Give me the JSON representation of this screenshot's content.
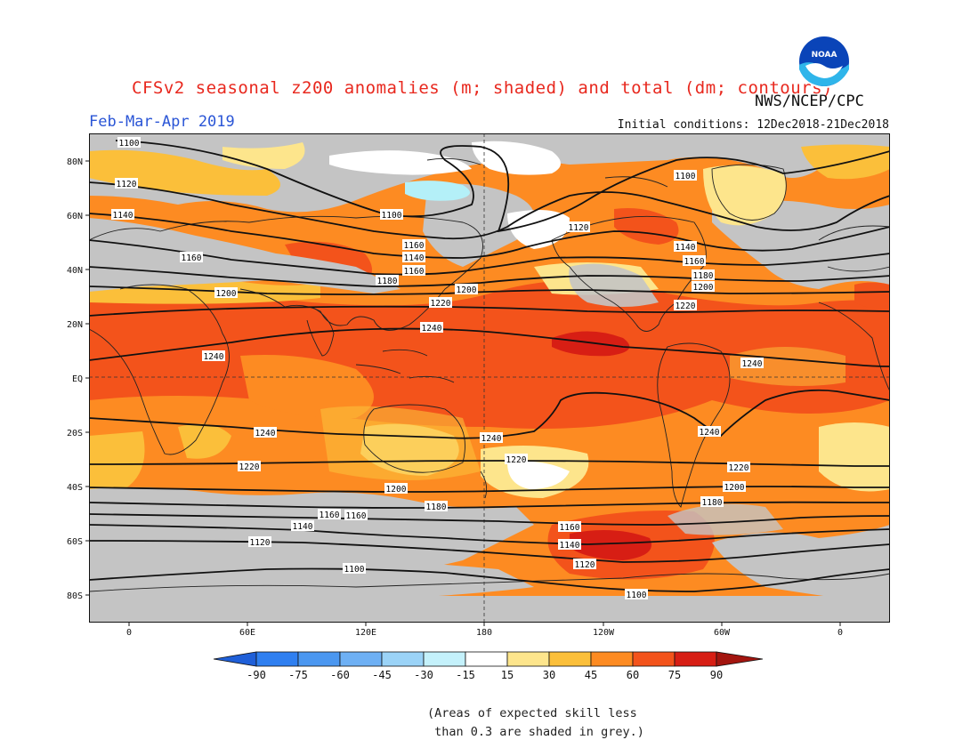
{
  "header": {
    "title": "CFSv2 seasonal z200 anomalies (m; shaded) and total (dm; contours)",
    "agency": "NWS/NCEP/CPC",
    "season": "Feb-Mar-Apr 2019",
    "initial_conditions": "Initial conditions: 12Dec2018-21Dec2018",
    "logo_icon": "noaa-logo-icon",
    "logo_text": "NOAA"
  },
  "map": {
    "lat_labels": [
      "80N",
      "60N",
      "40N",
      "20N",
      "EQ",
      "20S",
      "40S",
      "60S",
      "80S"
    ],
    "lon_labels": [
      "0",
      "60E",
      "120E",
      "180",
      "120W",
      "60W",
      "0"
    ],
    "contours": [
      {
        "value": "1100",
        "labels": [
          "1100",
          "1100",
          "1100",
          "1100",
          "1100"
        ]
      },
      {
        "value": "1120",
        "labels": [
          "1120",
          "1120",
          "1120",
          "1120"
        ]
      },
      {
        "value": "1140",
        "labels": [
          "1140",
          "1140",
          "1140",
          "1140",
          "1140"
        ]
      },
      {
        "value": "1160",
        "labels": [
          "1160",
          "1160",
          "1160",
          "1160",
          "1160",
          "1160",
          "1160"
        ]
      },
      {
        "value": "1180",
        "labels": [
          "1180",
          "1180",
          "1180",
          "1180"
        ]
      },
      {
        "value": "1200",
        "labels": [
          "1200",
          "1200",
          "1200",
          "1200",
          "1200"
        ]
      },
      {
        "value": "1220",
        "labels": [
          "1220",
          "1220",
          "1220",
          "1220",
          "1220"
        ]
      },
      {
        "value": "1240",
        "labels": [
          "1240",
          "1240",
          "1240",
          "1240",
          "1240",
          "1240"
        ]
      }
    ],
    "colors": {
      "grey_mask": "#c4c4c4",
      "c15_30": "#fde58c",
      "c30_45": "#fbbf3a",
      "c45_60": "#fd8b22",
      "c60_75": "#f3531b",
      "c75_90": "#d71e14",
      "cm15_m30": "#b4f0f8",
      "white": "#ffffff"
    }
  },
  "colorbar": {
    "labels": [
      "-90",
      "-75",
      "-60",
      "-45",
      "-30",
      "-15",
      "15",
      "30",
      "45",
      "60",
      "75",
      "90"
    ],
    "colors": [
      "#1f5fd8",
      "#2f7ff0",
      "#4b97f0",
      "#6eb0f4",
      "#9bd3f7",
      "#c4f1fb",
      "#ffffff",
      "#fde58c",
      "#fbbf3a",
      "#fd8b22",
      "#f3531b",
      "#d71e14",
      "#a3150f"
    ]
  },
  "note": {
    "line1": "(Areas of expected skill less",
    "line2": " than 0.3 are shaded in grey.)"
  }
}
